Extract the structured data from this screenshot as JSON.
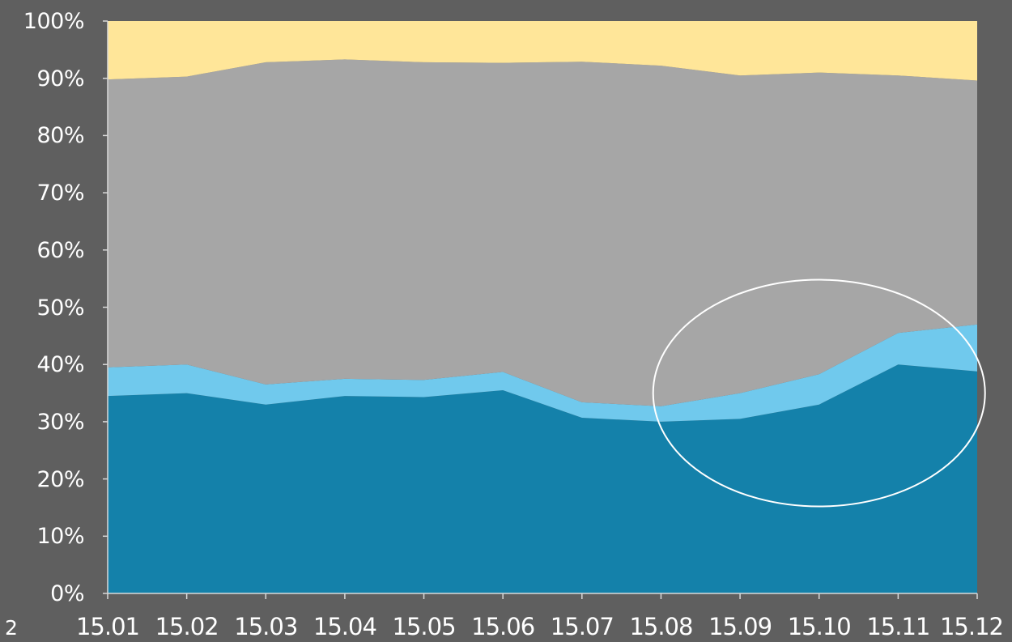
{
  "page_number": "2",
  "chart_data": {
    "type": "area",
    "stacked": true,
    "percent_stacked": true,
    "categories": [
      "15.01",
      "15.02",
      "15.03",
      "15.04",
      "15.05",
      "15.06",
      "15.07",
      "15.08",
      "15.09",
      "15.10",
      "15.11",
      "15.12"
    ],
    "series": [
      {
        "color": "#1481aa",
        "values": [
          34.5,
          35,
          33,
          34.5,
          34.3,
          35.5,
          30.7,
          30,
          30.5,
          33,
          40,
          38.8
        ]
      },
      {
        "color": "#70c9ed",
        "values": [
          5,
          5,
          3.5,
          3,
          3,
          3.2,
          2.7,
          2.7,
          4.5,
          5.3,
          5.5,
          8.2
        ]
      },
      {
        "color": "#a6a6a6",
        "values": [
          50.3,
          50.3,
          56.3,
          55.8,
          55.5,
          54,
          59.5,
          59.5,
          55.5,
          52.7,
          45,
          42.6
        ]
      },
      {
        "color": "#ffe699",
        "values": [
          10.2,
          9.7,
          7.2,
          6.7,
          7.2,
          7.3,
          7.1,
          7.8,
          9.5,
          9,
          9.5,
          10.4
        ]
      }
    ],
    "y_ticks": [
      "0%",
      "10%",
      "20%",
      "30%",
      "40%",
      "50%",
      "60%",
      "70%",
      "80%",
      "90%",
      "100%"
    ],
    "ylim": [
      0,
      100
    ],
    "grid": false,
    "annotation": {
      "shape": "ellipse",
      "color": "#ffffff",
      "center_x": "15.10",
      "center_y": 35
    }
  }
}
